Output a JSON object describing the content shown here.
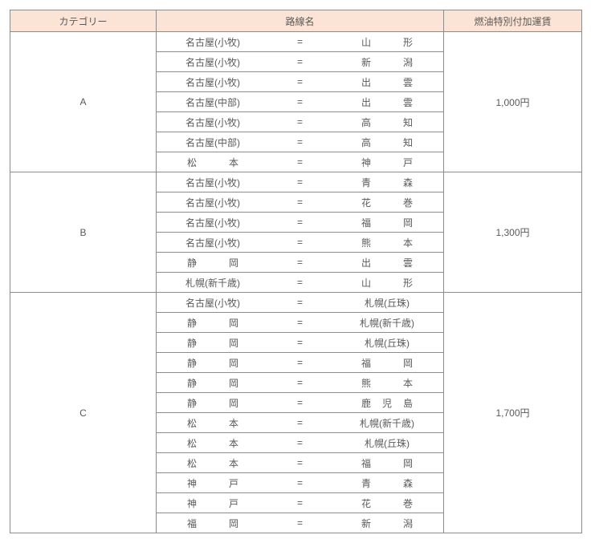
{
  "columns": {
    "category": "カテゴリー",
    "route": "路線名",
    "price": "燃油特別付加運賃"
  },
  "col_widths": {
    "category": 182,
    "route": 358,
    "price": 172
  },
  "colors": {
    "header_bg": "#fbe4d5",
    "border": "#8c8c8c",
    "text": "#595959",
    "background": "#ffffff"
  },
  "typography": {
    "font_size_pt": 9,
    "font_family": "Meiryo"
  },
  "groups": [
    {
      "category": "A",
      "price": "1,000円",
      "routes": [
        {
          "origin": "名古屋(小牧)",
          "dest": "山形"
        },
        {
          "origin": "名古屋(小牧)",
          "dest": "新潟"
        },
        {
          "origin": "名古屋(小牧)",
          "dest": "出雲"
        },
        {
          "origin": "名古屋(中部)",
          "dest": "出雲"
        },
        {
          "origin": "名古屋(小牧)",
          "dest": "高知"
        },
        {
          "origin": "名古屋(中部)",
          "dest": "高知"
        },
        {
          "origin": "松本",
          "dest": "神戸"
        }
      ]
    },
    {
      "category": "B",
      "price": "1,300円",
      "routes": [
        {
          "origin": "名古屋(小牧)",
          "dest": "青森"
        },
        {
          "origin": "名古屋(小牧)",
          "dest": "花巻"
        },
        {
          "origin": "名古屋(小牧)",
          "dest": "福岡"
        },
        {
          "origin": "名古屋(小牧)",
          "dest": "熊本"
        },
        {
          "origin": "静岡",
          "dest": "出雲"
        },
        {
          "origin": "札幌(新千歳)",
          "dest": "山形"
        }
      ]
    },
    {
      "category": "C",
      "price": "1,700円",
      "routes": [
        {
          "origin": "名古屋(小牧)",
          "dest": "札幌(丘珠)"
        },
        {
          "origin": "静岡",
          "dest": "札幌(新千歳)"
        },
        {
          "origin": "静岡",
          "dest": "札幌(丘珠)"
        },
        {
          "origin": "静岡",
          "dest": "福岡"
        },
        {
          "origin": "静岡",
          "dest": "熊本"
        },
        {
          "origin": "静岡",
          "dest": "鹿児島"
        },
        {
          "origin": "松本",
          "dest": "札幌(新千歳)"
        },
        {
          "origin": "松本",
          "dest": "札幌(丘珠)"
        },
        {
          "origin": "松本",
          "dest": "福岡"
        },
        {
          "origin": "神戸",
          "dest": "青森"
        },
        {
          "origin": "神戸",
          "dest": "花巻"
        },
        {
          "origin": "福岡",
          "dest": "新潟"
        }
      ]
    }
  ]
}
